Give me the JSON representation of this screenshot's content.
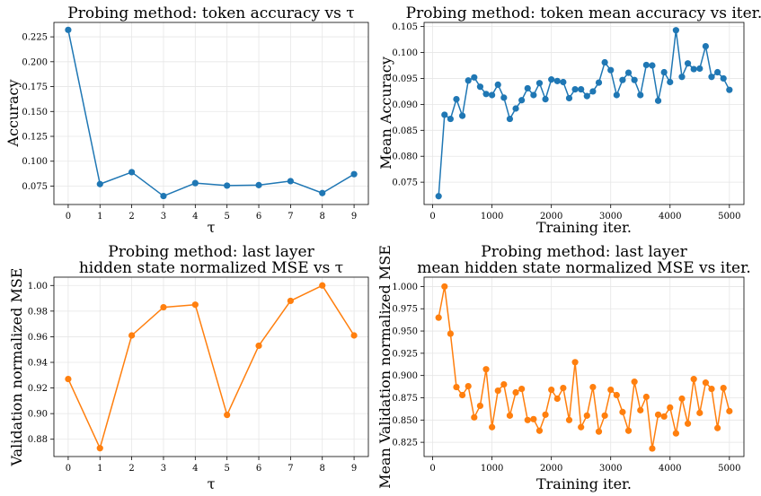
{
  "chart_data": [
    {
      "id": "p1",
      "type": "line",
      "title": [
        "Probing method: token accuracy vs τ"
      ],
      "xlabel": "τ",
      "ylabel": "Accuracy",
      "color": "#1f77b4",
      "xlim": [
        -0.45,
        9.45
      ],
      "ylim": [
        0.0565,
        0.2395
      ],
      "xticks": [
        0,
        1,
        2,
        3,
        4,
        5,
        6,
        7,
        8,
        9
      ],
      "xtick_labels": [
        "0",
        "1",
        "2",
        "3",
        "4",
        "5",
        "6",
        "7",
        "8",
        "9"
      ],
      "yticks": [
        0.075,
        0.1,
        0.125,
        0.15,
        0.175,
        0.2,
        0.225
      ],
      "ytick_labels": [
        "0.075",
        "0.100",
        "0.125",
        "0.150",
        "0.175",
        "0.200",
        "0.225"
      ],
      "x": [
        0,
        1,
        2,
        3,
        4,
        5,
        6,
        7,
        8,
        9
      ],
      "y": [
        0.232,
        0.077,
        0.089,
        0.065,
        0.078,
        0.0755,
        0.076,
        0.08,
        0.068,
        0.087
      ]
    },
    {
      "id": "p2",
      "type": "line",
      "title": [
        "Probing method: token mean accuracy vs iter."
      ],
      "xlabel": "Training iter.",
      "ylabel": "Mean Accuracy",
      "color": "#1f77b4",
      "xlim": [
        -145,
        5245
      ],
      "ylim": [
        0.0707,
        0.1058
      ],
      "xticks": [
        0,
        1000,
        2000,
        3000,
        4000,
        5000
      ],
      "xtick_labels": [
        "0",
        "1000",
        "2000",
        "3000",
        "4000",
        "5000"
      ],
      "yticks": [
        0.075,
        0.08,
        0.085,
        0.09,
        0.095,
        0.1,
        0.105
      ],
      "ytick_labels": [
        "0.075",
        "0.080",
        "0.085",
        "0.090",
        "0.095",
        "0.100",
        "0.105"
      ],
      "x": [
        100,
        200,
        300,
        400,
        500,
        600,
        700,
        800,
        900,
        1000,
        1100,
        1200,
        1300,
        1400,
        1500,
        1600,
        1700,
        1800,
        1900,
        2000,
        2100,
        2200,
        2300,
        2400,
        2500,
        2600,
        2700,
        2800,
        2900,
        3000,
        3100,
        3200,
        3300,
        3400,
        3500,
        3600,
        3700,
        3800,
        3900,
        4000,
        4100,
        4200,
        4300,
        4400,
        4500,
        4600,
        4700,
        4800,
        4900,
        5000
      ],
      "y": [
        0.0723,
        0.088,
        0.0872,
        0.091,
        0.0878,
        0.0946,
        0.0952,
        0.0934,
        0.092,
        0.0918,
        0.0938,
        0.0913,
        0.0872,
        0.0892,
        0.0908,
        0.0931,
        0.0918,
        0.0941,
        0.091,
        0.0948,
        0.0945,
        0.0943,
        0.0912,
        0.0929,
        0.0929,
        0.0916,
        0.0925,
        0.0942,
        0.0981,
        0.0966,
        0.0918,
        0.0947,
        0.0961,
        0.0947,
        0.0918,
        0.0976,
        0.0975,
        0.0907,
        0.0962,
        0.0943,
        0.1043,
        0.0953,
        0.0979,
        0.0968,
        0.0969,
        0.1012,
        0.0953,
        0.0962,
        0.095,
        0.0928
      ]
    },
    {
      "id": "p3",
      "type": "line",
      "title": [
        "Probing method: last layer",
        "hidden state normalized MSE vs τ"
      ],
      "xlabel": "τ",
      "ylabel": "Validation normalized MSE",
      "color": "#ff7f0e",
      "xlim": [
        -0.45,
        9.45
      ],
      "ylim": [
        0.8665,
        1.0065
      ],
      "xticks": [
        0,
        1,
        2,
        3,
        4,
        5,
        6,
        7,
        8,
        9
      ],
      "xtick_labels": [
        "0",
        "1",
        "2",
        "3",
        "4",
        "5",
        "6",
        "7",
        "8",
        "9"
      ],
      "yticks": [
        0.88,
        0.9,
        0.92,
        0.94,
        0.96,
        0.98,
        1.0
      ],
      "ytick_labels": [
        "0.88",
        "0.90",
        "0.92",
        "0.94",
        "0.96",
        "0.98",
        "1.00"
      ],
      "x": [
        0,
        1,
        2,
        3,
        4,
        5,
        6,
        7,
        8,
        9
      ],
      "y": [
        0.927,
        0.873,
        0.961,
        0.983,
        0.985,
        0.899,
        0.953,
        0.988,
        1.0,
        0.961
      ]
    },
    {
      "id": "p4",
      "type": "line",
      "title": [
        "Probing method: last layer",
        "mean hidden state normalized MSE vs iter."
      ],
      "xlabel": "Training iter.",
      "ylabel": "Mean Validation normalized MSE",
      "color": "#ff7f0e",
      "xlim": [
        -145,
        5245
      ],
      "ylim": [
        0.809,
        1.0105
      ],
      "xticks": [
        0,
        1000,
        2000,
        3000,
        4000,
        5000
      ],
      "xtick_labels": [
        "0",
        "1000",
        "2000",
        "3000",
        "4000",
        "5000"
      ],
      "yticks": [
        0.825,
        0.85,
        0.875,
        0.9,
        0.925,
        0.95,
        0.975,
        1.0
      ],
      "ytick_labels": [
        "0.825",
        "0.850",
        "0.875",
        "0.900",
        "0.925",
        "0.950",
        "0.975",
        "1.000"
      ],
      "x": [
        100,
        200,
        300,
        400,
        500,
        600,
        700,
        800,
        900,
        1000,
        1100,
        1200,
        1300,
        1400,
        1500,
        1600,
        1700,
        1800,
        1900,
        2000,
        2100,
        2200,
        2300,
        2400,
        2500,
        2600,
        2700,
        2800,
        2900,
        3000,
        3100,
        3200,
        3300,
        3400,
        3500,
        3600,
        3700,
        3800,
        3900,
        4000,
        4100,
        4200,
        4300,
        4400,
        4500,
        4600,
        4700,
        4800,
        4900,
        5000
      ],
      "y": [
        0.965,
        1.0,
        0.947,
        0.887,
        0.878,
        0.888,
        0.853,
        0.866,
        0.907,
        0.842,
        0.883,
        0.89,
        0.855,
        0.881,
        0.885,
        0.85,
        0.851,
        0.838,
        0.856,
        0.884,
        0.874,
        0.886,
        0.85,
        0.915,
        0.842,
        0.855,
        0.887,
        0.837,
        0.855,
        0.884,
        0.878,
        0.859,
        0.838,
        0.893,
        0.861,
        0.876,
        0.818,
        0.856,
        0.854,
        0.864,
        0.835,
        0.874,
        0.846,
        0.896,
        0.858,
        0.892,
        0.885,
        0.841,
        0.886,
        0.86
      ]
    }
  ]
}
